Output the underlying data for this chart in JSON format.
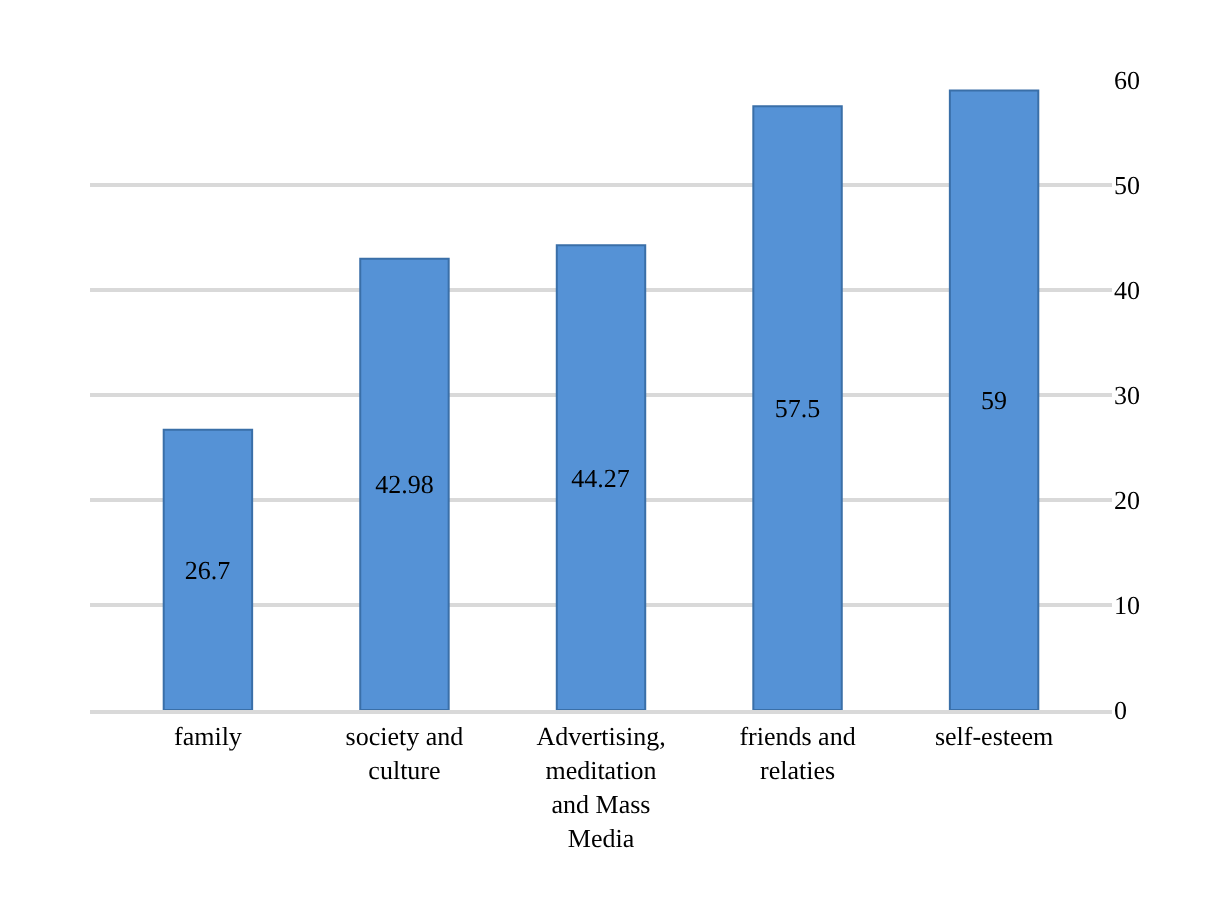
{
  "chart_data": {
    "type": "bar",
    "categories": [
      "family",
      "society and culture",
      "Advertising, meditation and Mass Media",
      "friends and relaties",
      "self-esteem"
    ],
    "values": [
      26.7,
      42.98,
      44.27,
      57.5,
      59
    ],
    "color": "#5592d6",
    "ylim": [
      0,
      60
    ],
    "yticks": [
      0,
      10,
      20,
      30,
      40,
      50,
      60
    ],
    "grid": "y",
    "data_labels": true
  }
}
